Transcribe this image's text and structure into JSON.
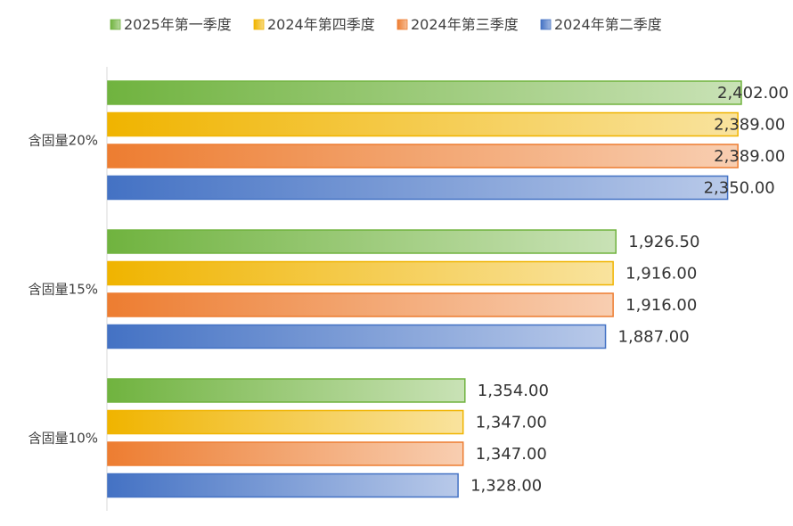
{
  "chart_data": {
    "type": "bar",
    "orientation": "horizontal",
    "categories": [
      "含固量20%",
      "含固量15%",
      "含固量10%"
    ],
    "series": [
      {
        "name": "2025年第一季度",
        "values": [
          2402.0,
          1926.5,
          1354.0
        ],
        "color": "#70b33f"
      },
      {
        "name": "2024年第四季度",
        "values": [
          2389.0,
          1916.0,
          1347.0
        ],
        "color": "#f0b400"
      },
      {
        "name": "2024年第三季度",
        "values": [
          2389.0,
          1916.0,
          1347.0
        ],
        "color": "#ed7d31"
      },
      {
        "name": "2024年第二季度",
        "values": [
          2350.0,
          1887.0,
          1328.0
        ],
        "color": "#4472c4"
      }
    ],
    "data_labels": [
      [
        "2,402.00",
        "1,926.50",
        "1,354.00"
      ],
      [
        "2,389.00",
        "1,916.00",
        "1,347.00"
      ],
      [
        "2,389.00",
        "1,916.00",
        "1,347.00"
      ],
      [
        "2,350.00",
        "1,887.00",
        "1,328.00"
      ]
    ],
    "xlim": [
      0,
      2500
    ],
    "grid": false,
    "legend_position": "top"
  }
}
